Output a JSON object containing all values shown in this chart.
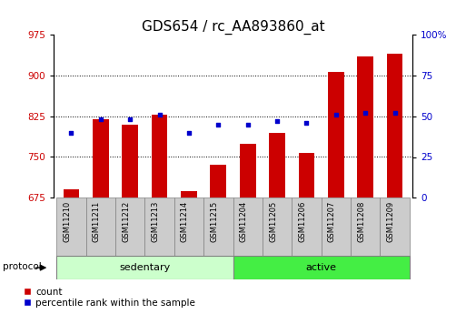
{
  "title": "GDS654 / rc_AA893860_at",
  "samples": [
    "GSM11210",
    "GSM11211",
    "GSM11212",
    "GSM11213",
    "GSM11214",
    "GSM11215",
    "GSM11204",
    "GSM11205",
    "GSM11206",
    "GSM11207",
    "GSM11208",
    "GSM11209"
  ],
  "count_values": [
    690,
    820,
    810,
    828,
    688,
    735,
    775,
    795,
    758,
    907,
    935,
    940
  ],
  "percentile_values": [
    40,
    48,
    48,
    51,
    40,
    45,
    45,
    47,
    46,
    51,
    52,
    52
  ],
  "groups": [
    {
      "label": "sedentary",
      "start": 0,
      "end": 6,
      "color": "#ccffcc"
    },
    {
      "label": "active",
      "start": 6,
      "end": 12,
      "color": "#44ee44"
    }
  ],
  "protocol_label": "protocol",
  "ylim_left": [
    675,
    975
  ],
  "ylim_right": [
    0,
    100
  ],
  "yticks_left": [
    675,
    750,
    825,
    900,
    975
  ],
  "yticks_right": [
    0,
    25,
    50,
    75,
    100
  ],
  "bar_color": "#cc0000",
  "dot_color": "#0000cc",
  "bar_width": 0.55,
  "background_color": "#ffffff",
  "left_axis_color": "#cc0000",
  "right_axis_color": "#0000cc",
  "title_fontsize": 11,
  "tick_fontsize": 7.5,
  "label_fontsize": 8,
  "xtick_cell_color": "#cccccc"
}
